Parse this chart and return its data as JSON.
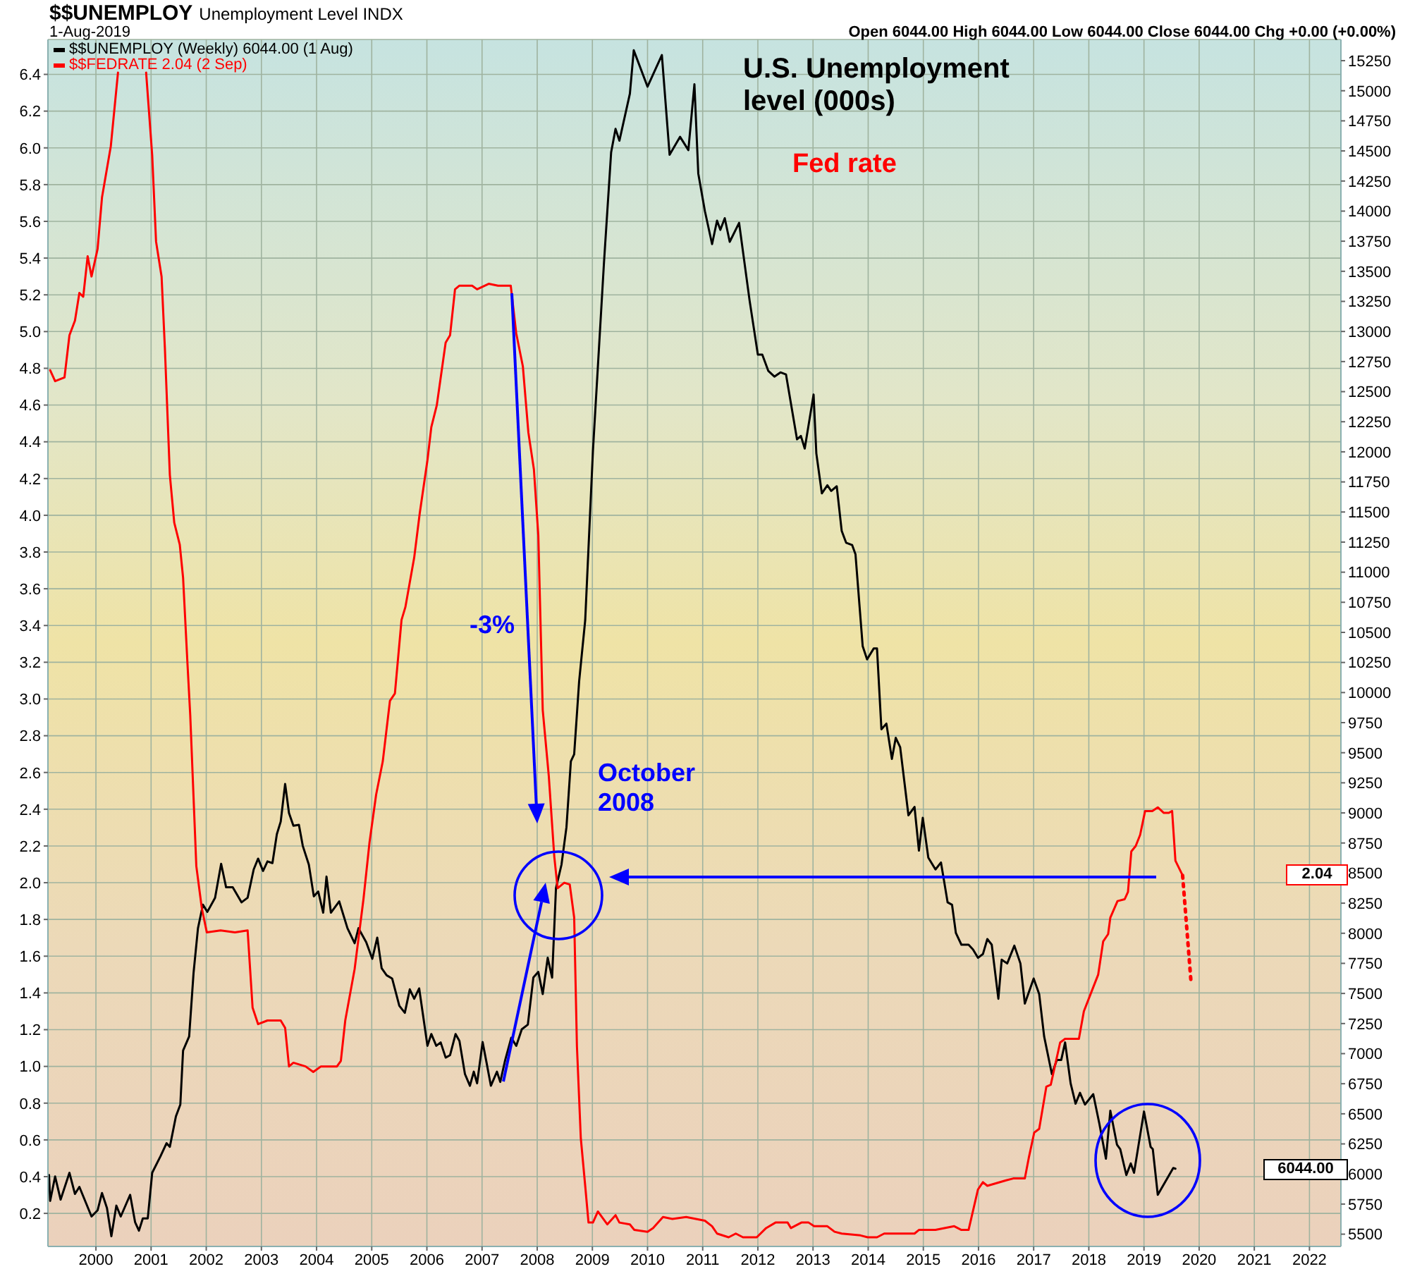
{
  "chart_data": {
    "type": "line",
    "title": "$$UNEMPLOY",
    "subtitle": "Unemployment Level INDX",
    "annotations": [
      "1-Aug-2019",
      "Open 6044.00  High 6044.00  Low 6044.00  Close 6044.00  Chg +0.00 (+0.00%)",
      "U.S. Unemployment level (000s)",
      "Fed rate",
      "-3%",
      "October 2008",
      "2.04",
      "6044.00"
    ],
    "xlim": [
      1999.13,
      2022.57
    ],
    "xticks": [
      2000,
      2001,
      2002,
      2003,
      2004,
      2005,
      2006,
      2007,
      2008,
      2009,
      2010,
      2011,
      2012,
      2013,
      2014,
      2015,
      2016,
      2017,
      2018,
      2019,
      2020,
      2021,
      2022
    ],
    "ylim": [
      0.02,
      6.59
    ],
    "yticks": [
      0.2,
      0.4,
      0.6,
      0.8,
      {
        "value": 1,
        "label": "1.0"
      },
      1.2,
      1.4,
      1.6,
      1.8,
      {
        "value": 2,
        "label": "2.0"
      },
      2.2,
      2.4,
      2.6,
      2.8,
      {
        "value": 3,
        "label": "3.0"
      },
      3.2,
      3.4,
      3.6,
      3.8,
      {
        "value": 4,
        "label": "4.0"
      },
      4.2,
      4.4,
      4.6,
      4.8,
      {
        "value": 5,
        "label": "5.0"
      },
      5.2,
      5.4,
      5.6,
      5.8,
      {
        "value": 6,
        "label": "6.0"
      },
      6.2,
      6.4
    ],
    "y2lim": [
      5398,
      15426
    ],
    "y2ticks": [
      5500,
      5750,
      6000,
      6250,
      6500,
      6750,
      7000,
      7250,
      7500,
      7750,
      8000,
      8250,
      8500,
      8750,
      9000,
      9250,
      9500,
      9750,
      10000,
      10250,
      10500,
      10750,
      11000,
      11250,
      11500,
      11750,
      12000,
      12250,
      12500,
      12750,
      13000,
      13250,
      13500,
      13750,
      14000,
      14250,
      14500,
      14750,
      15000,
      15250
    ],
    "grid": true,
    "legend": "top left",
    "series": [
      {
        "name": "$$UNEMPLOY (Weekly) 6044.00 (1 Aug)",
        "color": "#000000",
        "axis": "y2",
        "x": [
          1999.15,
          1999.17,
          1999.26,
          1999.36,
          1999.52,
          1999.62,
          1999.7,
          1999.92,
          2000.03,
          2000.11,
          2000.2,
          2000.28,
          2000.37,
          2000.45,
          2000.62,
          2000.71,
          2000.78,
          2000.85,
          2000.94,
          2001.02,
          2001.17,
          2001.28,
          2001.34,
          2001.45,
          2001.53,
          2001.58,
          2001.69,
          2001.77,
          2001.85,
          2001.94,
          2002.02,
          2002.16,
          2002.27,
          2002.36,
          2002.48,
          2002.64,
          2002.75,
          2002.86,
          2002.94,
          2003.03,
          2003.11,
          2003.2,
          2003.28,
          2003.35,
          2003.43,
          2003.5,
          2003.58,
          2003.68,
          2003.75,
          2003.86,
          2003.95,
          2004.03,
          2004.12,
          2004.18,
          2004.26,
          2004.41,
          2004.56,
          2004.69,
          2004.76,
          2004.9,
          2005.01,
          2005.1,
          2005.18,
          2005.27,
          2005.37,
          2005.5,
          2005.6,
          2005.69,
          2005.77,
          2005.86,
          2006.01,
          2006.08,
          2006.17,
          2006.25,
          2006.34,
          2006.42,
          2006.52,
          2006.59,
          2006.69,
          2006.78,
          2006.85,
          2006.91,
          2007.01,
          2007.08,
          2007.16,
          2007.27,
          2007.33,
          2007.42,
          2007.53,
          2007.62,
          2007.72,
          2007.83,
          2007.93,
          2008.02,
          2008.1,
          2008.19,
          2008.27,
          2008.34,
          2008.44,
          2008.53,
          2008.61,
          2008.67,
          2008.76,
          2008.87,
          2009.01,
          2009.21,
          2009.34,
          2009.42,
          2009.49,
          2009.68,
          2009.75,
          2010.0,
          2010.26,
          2010.4,
          2010.59,
          2010.74,
          2010.85,
          2010.92,
          2011.04,
          2011.17,
          2011.26,
          2011.32,
          2011.4,
          2011.49,
          2011.66,
          2011.85,
          2012.0,
          2012.08,
          2012.19,
          2012.3,
          2012.41,
          2012.51,
          2012.71,
          2012.78,
          2012.85,
          2013.01,
          2013.06,
          2013.16,
          2013.26,
          2013.33,
          2013.43,
          2013.52,
          2013.6,
          2013.71,
          2013.77,
          2013.9,
          2013.98,
          2014.1,
          2014.16,
          2014.24,
          2014.33,
          2014.43,
          2014.5,
          2014.58,
          2014.73,
          2014.84,
          2014.92,
          2014.99,
          2015.09,
          2015.22,
          2015.32,
          2015.44,
          2015.52,
          2015.59,
          2015.69,
          2015.82,
          2015.9,
          2015.99,
          2016.08,
          2016.16,
          2016.24,
          2016.36,
          2016.42,
          2016.52,
          2016.65,
          2016.76,
          2016.84,
          2017.0,
          2017.1,
          2017.19,
          2017.33,
          2017.42,
          2017.5,
          2017.57,
          2017.67,
          2017.76,
          2017.84,
          2017.93,
          2018.08,
          2018.19,
          2018.31,
          2018.39,
          2018.51,
          2018.57,
          2018.68,
          2018.76,
          2018.82,
          2019.0,
          2019.12,
          2019.16,
          2019.25,
          2019.53,
          2019.57
        ],
        "values": [
          5991,
          5776,
          5979,
          5787,
          6010,
          5834,
          5893,
          5647,
          5698,
          5842,
          5717,
          5483,
          5737,
          5647,
          5827,
          5600,
          5529,
          5631,
          5631,
          6010,
          6147,
          6256,
          6226,
          6479,
          6577,
          7026,
          7143,
          7671,
          8042,
          8237,
          8178,
          8295,
          8577,
          8382,
          8382,
          8257,
          8295,
          8530,
          8620,
          8518,
          8597,
          8583,
          8823,
          8928,
          9241,
          8999,
          8893,
          8901,
          8726,
          8570,
          8307,
          8347,
          8171,
          8471,
          8171,
          8265,
          8042,
          7917,
          8042,
          7925,
          7788,
          7964,
          7709,
          7651,
          7624,
          7398,
          7339,
          7534,
          7456,
          7542,
          7065,
          7163,
          7065,
          7093,
          6967,
          6987,
          7163,
          7105,
          6830,
          6733,
          6850,
          6753,
          7096,
          6929,
          6733,
          6850,
          6765,
          6948,
          7132,
          7065,
          7202,
          7241,
          7632,
          7679,
          7495,
          7796,
          7632,
          8374,
          8570,
          8881,
          9429,
          9487,
          10093,
          10601,
          12007,
          13569,
          14488,
          14683,
          14585,
          14976,
          15336,
          15034,
          15297,
          14468,
          14617,
          14507,
          15054,
          14312,
          14000,
          13726,
          13921,
          13844,
          13941,
          13745,
          13902,
          13258,
          12808,
          12808,
          12672,
          12625,
          12660,
          12643,
          12104,
          12132,
          12027,
          12476,
          11987,
          11655,
          11722,
          11675,
          11714,
          11343,
          11245,
          11225,
          11148,
          10386,
          10276,
          10366,
          10366,
          9695,
          9742,
          9449,
          9624,
          9546,
          8980,
          9050,
          8687,
          8960,
          8628,
          8530,
          8588,
          8257,
          8237,
          8002,
          7905,
          7905,
          7866,
          7796,
          7827,
          7952,
          7905,
          7456,
          7780,
          7749,
          7897,
          7749,
          7416,
          7624,
          7495,
          7143,
          6830,
          6948,
          6948,
          7093,
          6753,
          6584,
          6674,
          6577,
          6663,
          6420,
          6127,
          6526,
          6244,
          6206,
          5991,
          6088,
          6010,
          6519,
          6226,
          6206,
          5827,
          6050,
          6044
        ]
      },
      {
        "name": "$$FEDRATE 2.04 (2 Sep)",
        "color": "#ff0000",
        "x": [
          1999.17,
          1999.26,
          1999.43,
          1999.52,
          1999.62,
          1999.7,
          1999.77,
          1999.85,
          1999.92,
          2000.03,
          2000.11,
          2000.27,
          2000.4,
          2000.65,
          2000.91,
          2001.02,
          2001.09,
          2001.19,
          2001.25,
          2001.34,
          2001.42,
          2001.52,
          2001.58,
          2001.66,
          2001.71,
          2001.82,
          2001.92,
          2002.01,
          2002.26,
          2002.52,
          2002.75,
          2002.84,
          2002.94,
          2003.11,
          2003.35,
          2003.43,
          2003.5,
          2003.58,
          2003.8,
          2003.94,
          2004.08,
          2004.37,
          2004.44,
          2004.52,
          2004.69,
          2004.85,
          2004.96,
          2005.08,
          2005.2,
          2005.33,
          2005.42,
          2005.54,
          2005.61,
          2005.77,
          2005.87,
          2006.01,
          2006.08,
          2006.18,
          2006.34,
          2006.42,
          2006.51,
          2006.59,
          2006.82,
          2006.91,
          2007.12,
          2007.29,
          2007.52,
          2007.62,
          2007.74,
          2007.84,
          2007.94,
          2008.02,
          2008.1,
          2008.21,
          2008.31,
          2008.37,
          2008.49,
          2008.59,
          2008.67,
          2008.72,
          2008.79,
          2008.87,
          2008.93,
          2009.01,
          2009.1,
          2009.27,
          2009.42,
          2009.49,
          2009.68,
          2009.76,
          2010.0,
          2010.1,
          2010.28,
          2010.45,
          2010.7,
          2011.04,
          2011.17,
          2011.26,
          2011.47,
          2011.6,
          2011.73,
          2011.98,
          2012.15,
          2012.32,
          2012.54,
          2012.6,
          2012.79,
          2012.92,
          2013.02,
          2013.26,
          2013.39,
          2013.52,
          2013.86,
          2013.99,
          2014.16,
          2014.29,
          2014.41,
          2014.54,
          2014.84,
          2014.92,
          2015.22,
          2015.56,
          2015.69,
          2015.82,
          2015.99,
          2016.08,
          2016.16,
          2016.5,
          2016.63,
          2016.84,
          2016.91,
          2017.01,
          2017.1,
          2017.23,
          2017.31,
          2017.48,
          2017.57,
          2017.82,
          2017.91,
          2018.04,
          2018.17,
          2018.26,
          2018.35,
          2018.39,
          2018.52,
          2018.65,
          2018.71,
          2018.77,
          2018.85,
          2018.93,
          2019.02,
          2019.15,
          2019.25,
          2019.36,
          2019.45,
          2019.51,
          2019.57,
          2019.7
        ],
        "values": [
          4.79,
          4.73,
          4.75,
          4.98,
          5.06,
          5.21,
          5.19,
          5.41,
          5.3,
          5.45,
          5.73,
          6.01,
          6.41,
          null,
          6.41,
          5.96,
          5.49,
          5.3,
          4.91,
          4.22,
          3.96,
          3.84,
          3.66,
          3.19,
          2.91,
          2.09,
          1.86,
          1.73,
          1.74,
          1.73,
          1.74,
          1.32,
          1.23,
          1.25,
          1.25,
          1.21,
          1.0,
          1.02,
          1.0,
          0.97,
          1.0,
          1.0,
          1.03,
          1.25,
          1.53,
          1.91,
          2.22,
          2.48,
          2.66,
          2.99,
          3.03,
          3.43,
          3.5,
          3.77,
          4.01,
          4.3,
          4.48,
          4.6,
          4.94,
          4.98,
          5.23,
          5.25,
          5.25,
          5.23,
          5.26,
          5.25,
          5.25,
          4.99,
          4.81,
          4.45,
          4.25,
          3.89,
          2.94,
          2.58,
          2.14,
          1.97,
          2.0,
          1.99,
          1.81,
          1.11,
          0.61,
          0.35,
          0.15,
          0.15,
          0.21,
          0.14,
          0.19,
          0.15,
          0.14,
          0.11,
          0.1,
          0.12,
          0.18,
          0.17,
          0.18,
          0.16,
          0.13,
          0.09,
          0.07,
          0.09,
          0.07,
          0.07,
          0.12,
          0.15,
          0.15,
          0.12,
          0.15,
          0.15,
          0.13,
          0.13,
          0.1,
          0.09,
          0.08,
          0.07,
          0.07,
          0.09,
          0.09,
          0.09,
          0.09,
          0.11,
          0.11,
          0.13,
          0.11,
          0.11,
          0.33,
          0.37,
          0.35,
          0.38,
          0.39,
          0.39,
          0.5,
          0.64,
          0.66,
          0.89,
          0.9,
          1.13,
          1.15,
          1.15,
          1.3,
          1.4,
          1.5,
          1.68,
          1.72,
          1.81,
          1.9,
          1.91,
          1.95,
          2.17,
          2.2,
          2.26,
          2.39,
          2.39,
          2.41,
          2.38,
          2.38,
          2.39,
          2.12,
          2.04
        ]
      },
      {
        "color": "#ff0000",
        "line_style": "dotted",
        "x": [
          2019.7,
          2019.85
        ],
        "values": [
          2.04,
          1.47
        ]
      }
    ]
  }
}
